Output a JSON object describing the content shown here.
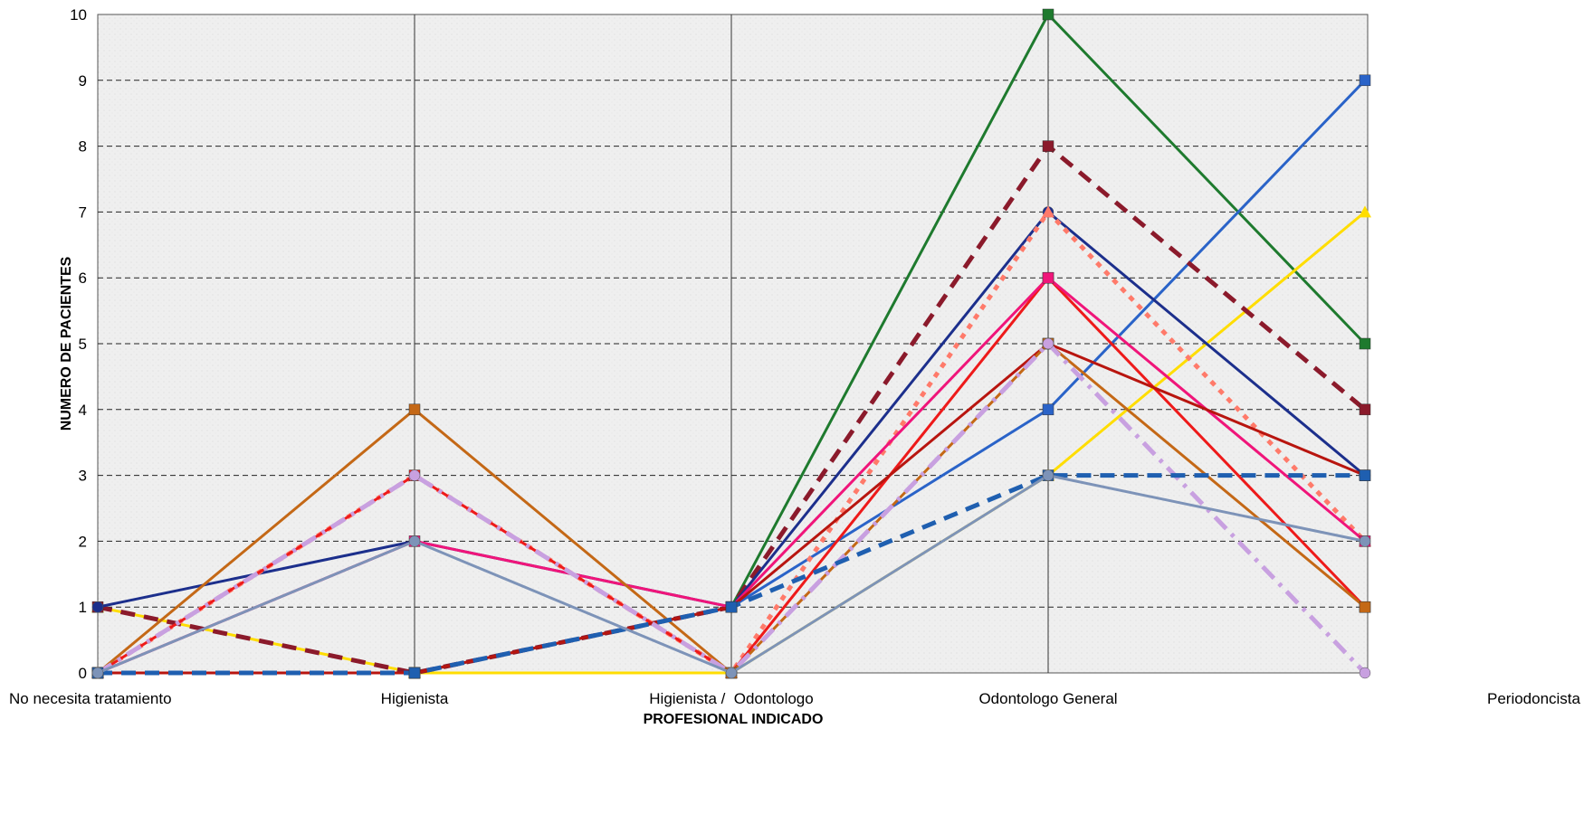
{
  "chart_data": {
    "type": "line",
    "title": "",
    "xlabel": "PROFESIONAL INDICADO",
    "ylabel": "NUMERO DE PACIENTES",
    "categories": [
      "No necesita tratamiento",
      "Higienista",
      "Higienista /  Odontologo",
      "Odontologo General",
      "Periodoncista"
    ],
    "ylim": [
      0,
      10
    ],
    "yticks": [
      0,
      1,
      2,
      3,
      4,
      5,
      6,
      7,
      8,
      9,
      10
    ],
    "grid": true,
    "legend": "none",
    "series": [
      {
        "color": "#1e7a2e",
        "style": "solid",
        "marker": "square",
        "values": [
          0,
          0,
          1,
          10,
          5
        ]
      },
      {
        "color": "#2a63c8",
        "style": "solid",
        "marker": "square",
        "values": [
          0,
          0,
          1,
          4,
          9
        ]
      },
      {
        "color": "#ffdd00",
        "style": "solid",
        "marker": "triangle",
        "values": [
          1,
          0,
          0,
          3,
          7
        ]
      },
      {
        "color": "#8b1a2b",
        "style": "dashed",
        "marker": "square",
        "values": [
          1,
          0,
          1,
          8,
          4
        ]
      },
      {
        "color": "#1c2f8c",
        "style": "solid",
        "marker": "circle",
        "values": [
          1,
          2,
          1,
          7,
          3
        ]
      },
      {
        "color": "#ff7a6a",
        "style": "dotted",
        "marker": "triangle",
        "values": [
          0,
          3,
          0,
          7,
          2
        ]
      },
      {
        "color": "#ee1a1a",
        "style": "solid",
        "marker": "square",
        "values": [
          0,
          3,
          0,
          6,
          1
        ]
      },
      {
        "color": "#f0157a",
        "style": "solid",
        "marker": "square",
        "values": [
          0,
          2,
          1,
          6,
          2
        ]
      },
      {
        "color": "#b8150f",
        "style": "solid",
        "marker": "square",
        "values": [
          0,
          0,
          1,
          5,
          3
        ]
      },
      {
        "color": "#c46816",
        "style": "solid",
        "marker": "square",
        "values": [
          0,
          4,
          0,
          5,
          1
        ]
      },
      {
        "color": "#c8a0e0",
        "style": "dashdot",
        "marker": "circle",
        "values": [
          0,
          3,
          0,
          5,
          0
        ]
      },
      {
        "color": "#1f5fb0",
        "style": "dashed",
        "marker": "square",
        "values": [
          0,
          0,
          1,
          3,
          3
        ]
      },
      {
        "color": "#7d93b8",
        "style": "solid",
        "marker": "circle",
        "values": [
          0,
          2,
          0,
          3,
          2
        ]
      }
    ]
  }
}
